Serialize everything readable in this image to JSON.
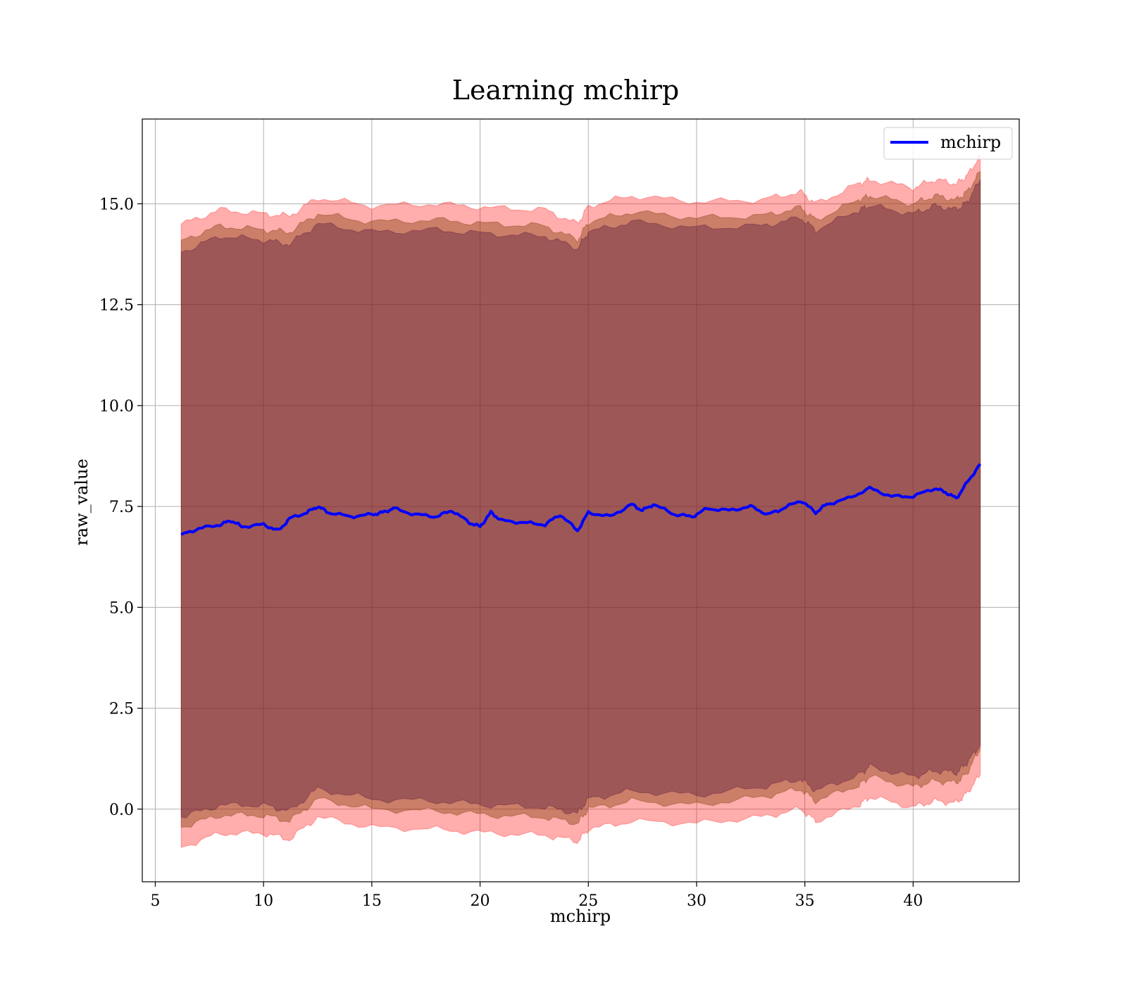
{
  "chart_data": {
    "type": "area",
    "title": "Learning mchirp",
    "xlabel": "mchirp",
    "ylabel": "raw_value",
    "xlim": [
      4.4,
      44.9
    ],
    "ylim": [
      -1.8,
      17.1
    ],
    "xticks": [
      5,
      10,
      15,
      20,
      25,
      30,
      35,
      40
    ],
    "yticks": [
      0.0,
      2.5,
      5.0,
      7.5,
      10.0,
      12.5,
      15.0
    ],
    "grid": true,
    "legend": {
      "position": "top-right",
      "entries": [
        "mchirp"
      ]
    },
    "series": [
      {
        "name": "mchirp",
        "kind": "line",
        "color": "#0000ff",
        "x": [
          6.2,
          7.0,
          8.0,
          8.5,
          9.0,
          10.0,
          10.7,
          11.2,
          12.0,
          12.5,
          13.0,
          14.0,
          15.0,
          15.5,
          16.0,
          17.0,
          18.0,
          18.7,
          19.5,
          20.0,
          20.5,
          21.0,
          22.0,
          23.0,
          23.7,
          24.5,
          25.0,
          26.0,
          27.0,
          27.5,
          28.0,
          29.0,
          29.8,
          30.5,
          31.5,
          32.5,
          33.3,
          34.0,
          34.8,
          35.5,
          36.0,
          37.0,
          38.0,
          39.0,
          40.0,
          41.0,
          41.5,
          42.0,
          42.5,
          43.1
        ],
        "y": [
          6.8,
          6.95,
          7.05,
          7.15,
          7.0,
          7.05,
          6.9,
          7.2,
          7.35,
          7.5,
          7.35,
          7.25,
          7.3,
          7.35,
          7.45,
          7.3,
          7.25,
          7.4,
          7.1,
          7.0,
          7.35,
          7.15,
          7.1,
          7.05,
          7.3,
          6.9,
          7.35,
          7.25,
          7.55,
          7.4,
          7.55,
          7.3,
          7.25,
          7.45,
          7.4,
          7.5,
          7.3,
          7.45,
          7.65,
          7.35,
          7.55,
          7.7,
          7.95,
          7.75,
          7.75,
          7.95,
          7.85,
          7.7,
          8.1,
          8.55
        ]
      },
      {
        "kind": "band",
        "color": "#ff0000",
        "opacity": 0.32,
        "x": [
          6.2,
          8.0,
          10.0,
          11.2,
          12.5,
          15.0,
          18.0,
          20.5,
          23.0,
          24.5,
          25.0,
          27.0,
          30.0,
          33.0,
          34.8,
          35.5,
          37.5,
          38.0,
          40.0,
          41.0,
          42.0,
          42.5,
          43.1
        ],
        "lower": [
          -0.95,
          -0.6,
          -0.6,
          -0.75,
          -0.2,
          -0.45,
          -0.5,
          -0.6,
          -0.65,
          -0.8,
          -0.5,
          -0.3,
          -0.35,
          -0.2,
          0.0,
          -0.3,
          0.1,
          0.3,
          0.05,
          0.2,
          0.15,
          0.4,
          0.85
        ],
        "upper": [
          14.5,
          14.85,
          14.75,
          14.7,
          15.15,
          14.95,
          15.0,
          14.9,
          14.85,
          14.5,
          14.95,
          15.2,
          15.05,
          15.1,
          15.3,
          15.0,
          15.5,
          15.6,
          15.4,
          15.6,
          15.5,
          15.7,
          16.2
        ]
      },
      {
        "kind": "band",
        "color": "#8b4513",
        "opacity": 0.45,
        "x": [
          6.2,
          8.0,
          10.0,
          11.2,
          12.5,
          15.0,
          18.0,
          20.5,
          23.0,
          24.5,
          25.0,
          27.0,
          30.0,
          33.0,
          34.8,
          35.5,
          37.5,
          38.0,
          40.0,
          41.0,
          42.0,
          42.5,
          43.1
        ],
        "lower": [
          -0.45,
          -0.15,
          -0.15,
          -0.3,
          0.25,
          0.0,
          -0.05,
          -0.15,
          -0.2,
          -0.35,
          0.0,
          0.2,
          0.1,
          0.3,
          0.5,
          0.2,
          0.6,
          0.8,
          0.55,
          0.7,
          0.65,
          0.9,
          1.5
        ],
        "upper": [
          14.1,
          14.45,
          14.35,
          14.3,
          14.75,
          14.55,
          14.6,
          14.5,
          14.45,
          14.1,
          14.55,
          14.8,
          14.65,
          14.7,
          14.9,
          14.6,
          15.1,
          15.2,
          15.0,
          15.2,
          15.1,
          15.3,
          15.8
        ]
      },
      {
        "kind": "band",
        "color": "#4b0f3a",
        "opacity": 0.35,
        "x": [
          6.2,
          8.0,
          10.0,
          11.2,
          12.5,
          15.0,
          18.0,
          20.5,
          23.0,
          24.5,
          25.0,
          27.0,
          30.0,
          33.0,
          34.8,
          35.5,
          37.5,
          38.0,
          40.0,
          41.0,
          42.0,
          42.5,
          43.1
        ],
        "lower": [
          -0.2,
          0.1,
          0.1,
          -0.05,
          0.5,
          0.25,
          0.2,
          0.1,
          0.05,
          -0.1,
          0.25,
          0.45,
          0.35,
          0.55,
          0.75,
          0.45,
          0.85,
          1.05,
          0.8,
          0.95,
          0.9,
          1.15,
          1.6
        ],
        "upper": [
          13.8,
          14.2,
          14.1,
          14.0,
          14.5,
          14.3,
          14.35,
          14.25,
          14.2,
          13.9,
          14.3,
          14.55,
          14.4,
          14.45,
          14.65,
          14.35,
          14.85,
          14.95,
          14.75,
          14.95,
          14.85,
          15.05,
          15.6
        ]
      }
    ]
  }
}
